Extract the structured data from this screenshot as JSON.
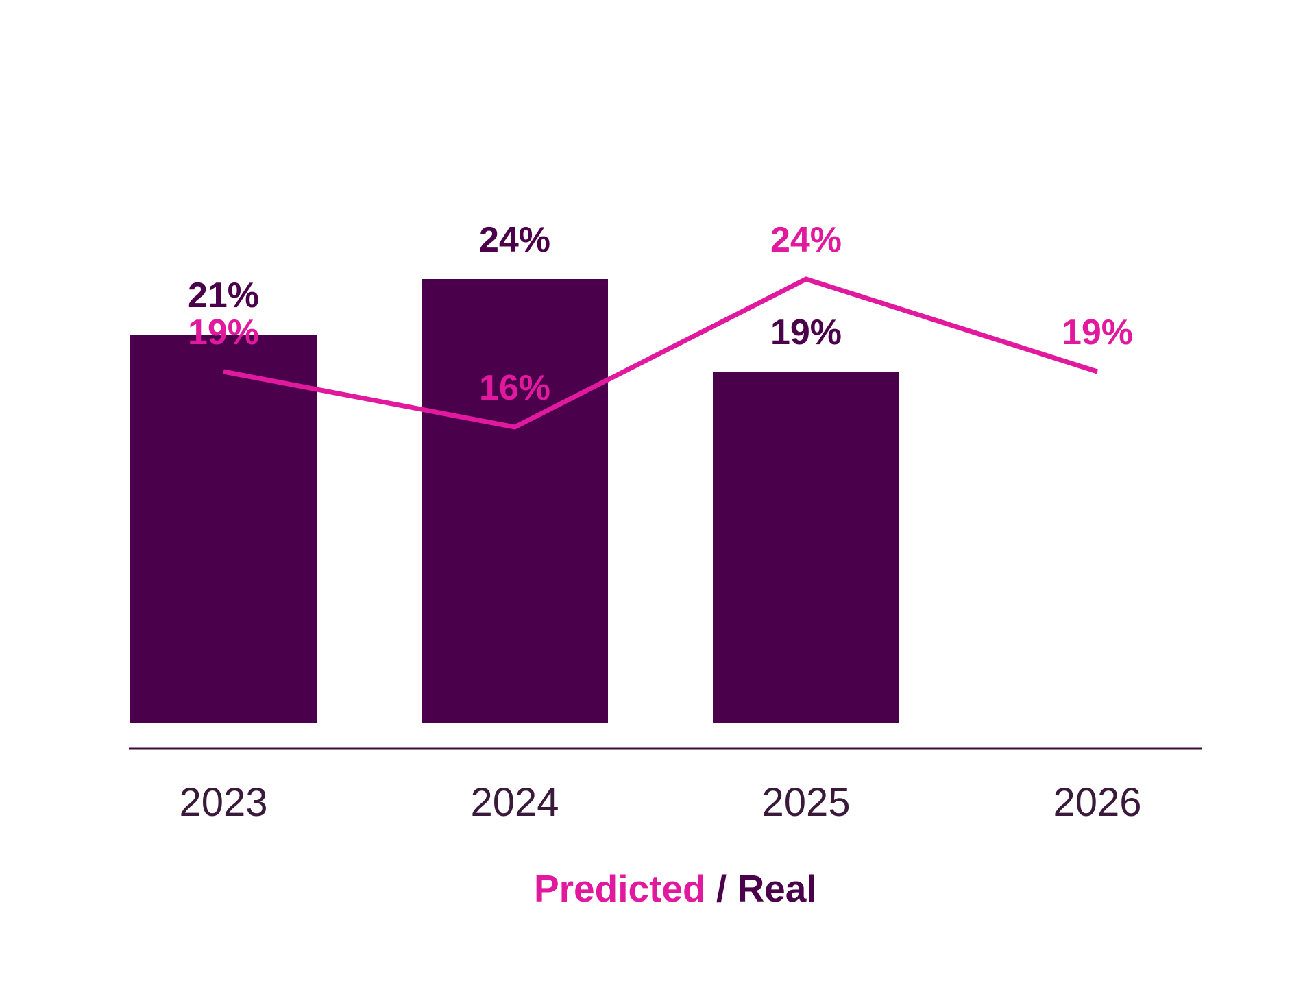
{
  "chart_data": {
    "type": "bar",
    "categories": [
      "2023",
      "2024",
      "2025",
      "2026"
    ],
    "series": [
      {
        "name": "Real",
        "type": "bar",
        "values": [
          21,
          24,
          19,
          null
        ],
        "labels": [
          "21%",
          "24%",
          "19%",
          ""
        ],
        "color": "#4b004b"
      },
      {
        "name": "Predicted",
        "type": "line",
        "values": [
          19,
          16,
          24,
          19
        ],
        "labels": [
          "19%",
          "16%",
          "24%",
          "19%"
        ],
        "color": "#e0199f"
      }
    ],
    "ylim": [
      0,
      30
    ],
    "xlabel": "",
    "ylabel": "",
    "grid": false,
    "legend": {
      "placement": "bottom-center",
      "predicted_label": "Predicted",
      "separator": " / ",
      "real_label": "Real"
    },
    "colors": {
      "bar": "#4b004b",
      "line": "#e0199f",
      "axis": "#3c0a3c",
      "tick_text": "#3a1a3a"
    }
  }
}
